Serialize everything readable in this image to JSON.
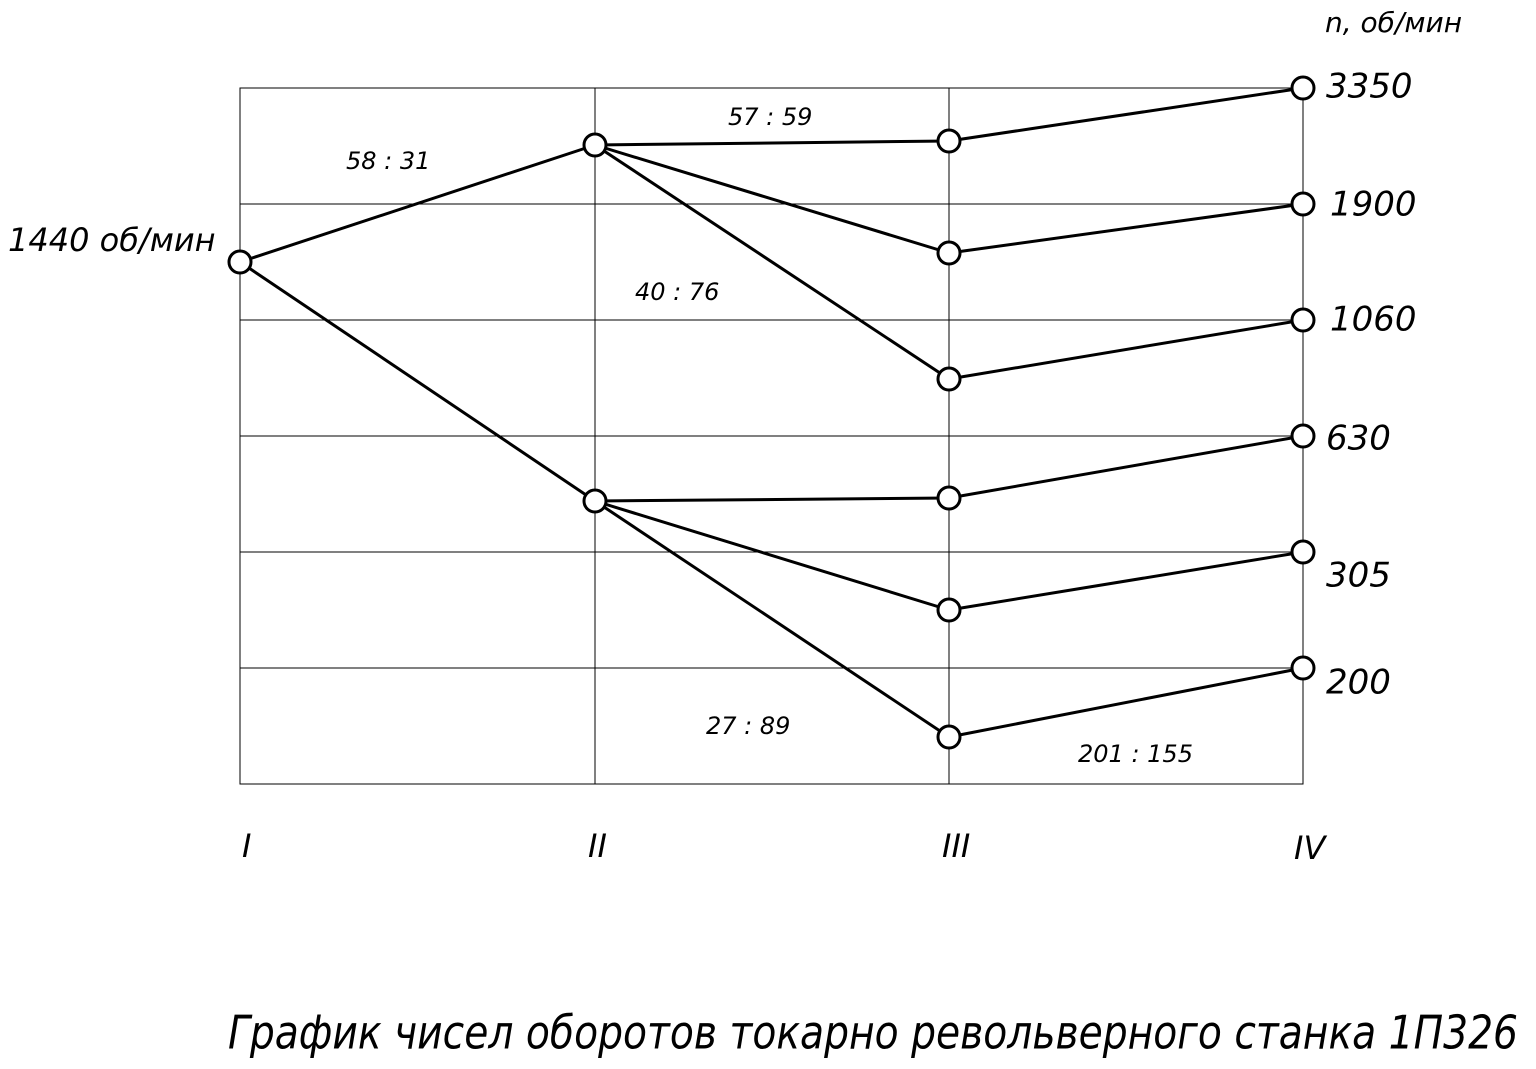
{
  "title": "График чисел оборотов токарно револьверного станка 1П326",
  "unit_label": "n, об/мин",
  "input_label": "1440 об/мин",
  "shafts": [
    "I",
    "II",
    "III",
    "IV"
  ],
  "output_speeds": [
    "3350",
    "1900",
    "1060",
    "630",
    "305",
    "200"
  ],
  "ratios": [
    "58 : 31",
    "57 : 59",
    "40 : 76",
    "27 : 89",
    "201 : 155"
  ]
}
